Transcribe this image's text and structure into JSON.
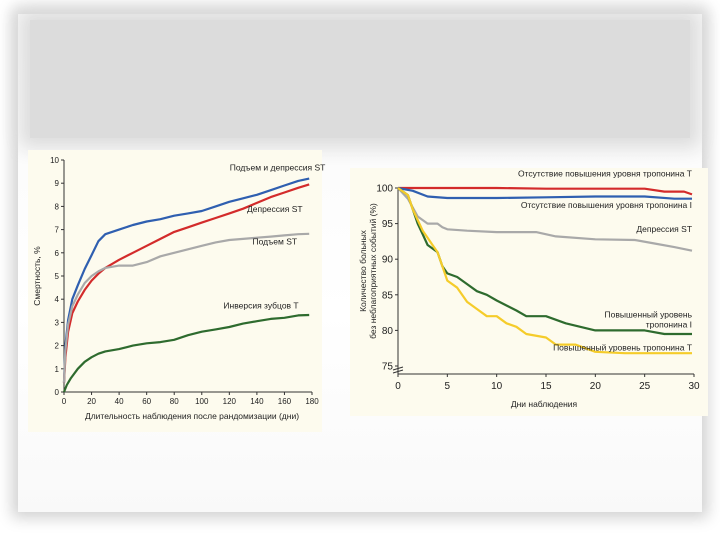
{
  "colors": {
    "frame_bg": "#ffffff",
    "title_band": "#dcdcdc",
    "panel_bg": "#fdfbee",
    "axis": "#333333"
  },
  "chart_data": [
    {
      "type": "line",
      "ylabel": "Смертность, %",
      "xlabel": "Длительность наблюдения после рандомизации (дни)",
      "xlim": [
        0,
        180
      ],
      "ylim": [
        0,
        10
      ],
      "x_ticks": [
        "0",
        "20",
        "40",
        "60",
        "80",
        "100",
        "120",
        "140",
        "160",
        "180"
      ],
      "y_ticks": [
        "0",
        "1",
        "2",
        "3",
        "4",
        "5",
        "6",
        "7",
        "8",
        "9",
        "10"
      ],
      "series": [
        {
          "name": "Подъем и депрессия ST",
          "color": "#2f5fb0",
          "label_anchor": [
            155,
            9.55
          ],
          "points": [
            [
              0,
              0.4
            ],
            [
              1,
              2
            ],
            [
              3,
              3.1
            ],
            [
              6,
              4
            ],
            [
              10,
              4.6
            ],
            [
              15,
              5.3
            ],
            [
              20,
              5.9
            ],
            [
              25,
              6.5
            ],
            [
              30,
              6.8
            ],
            [
              40,
              7.0
            ],
            [
              50,
              7.2
            ],
            [
              60,
              7.35
            ],
            [
              70,
              7.45
            ],
            [
              80,
              7.6
            ],
            [
              90,
              7.7
            ],
            [
              100,
              7.8
            ],
            [
              110,
              8.0
            ],
            [
              120,
              8.2
            ],
            [
              130,
              8.35
            ],
            [
              140,
              8.5
            ],
            [
              150,
              8.7
            ],
            [
              160,
              8.9
            ],
            [
              170,
              9.1
            ],
            [
              178,
              9.2
            ]
          ]
        },
        {
          "name": "Депрессия ST",
          "color": "#d32b2b",
          "label_anchor": [
            153,
            7.75
          ],
          "points": [
            [
              0,
              0.4
            ],
            [
              1,
              1.5
            ],
            [
              3,
              2.6
            ],
            [
              6,
              3.4
            ],
            [
              10,
              3.9
            ],
            [
              15,
              4.4
            ],
            [
              20,
              4.8
            ],
            [
              25,
              5.1
            ],
            [
              30,
              5.35
            ],
            [
              40,
              5.7
            ],
            [
              50,
              6.0
            ],
            [
              60,
              6.3
            ],
            [
              70,
              6.6
            ],
            [
              80,
              6.9
            ],
            [
              90,
              7.1
            ],
            [
              100,
              7.3
            ],
            [
              110,
              7.5
            ],
            [
              120,
              7.7
            ],
            [
              130,
              7.9
            ],
            [
              140,
              8.15
            ],
            [
              150,
              8.4
            ],
            [
              160,
              8.6
            ],
            [
              170,
              8.8
            ],
            [
              178,
              8.95
            ]
          ]
        },
        {
          "name": "Подъем ST",
          "color": "#a9a9a9",
          "label_anchor": [
            153,
            6.35
          ],
          "points": [
            [
              0,
              0.4
            ],
            [
              1,
              1.8
            ],
            [
              3,
              2.9
            ],
            [
              6,
              3.7
            ],
            [
              10,
              4.2
            ],
            [
              15,
              4.7
            ],
            [
              20,
              5.0
            ],
            [
              25,
              5.2
            ],
            [
              30,
              5.35
            ],
            [
              40,
              5.45
            ],
            [
              50,
              5.45
            ],
            [
              60,
              5.6
            ],
            [
              70,
              5.85
            ],
            [
              80,
              6.0
            ],
            [
              90,
              6.15
            ],
            [
              100,
              6.3
            ],
            [
              110,
              6.45
            ],
            [
              120,
              6.55
            ],
            [
              130,
              6.6
            ],
            [
              140,
              6.65
            ],
            [
              150,
              6.7
            ],
            [
              160,
              6.75
            ],
            [
              170,
              6.8
            ],
            [
              178,
              6.82
            ]
          ]
        },
        {
          "name": "Инверсия зубцов Т",
          "color": "#2e6b2e",
          "label_anchor": [
            143,
            3.6
          ],
          "points": [
            [
              0,
              0
            ],
            [
              2,
              0.3
            ],
            [
              5,
              0.6
            ],
            [
              10,
              1.0
            ],
            [
              15,
              1.3
            ],
            [
              20,
              1.5
            ],
            [
              25,
              1.65
            ],
            [
              30,
              1.75
            ],
            [
              40,
              1.85
            ],
            [
              50,
              2.0
            ],
            [
              60,
              2.1
            ],
            [
              70,
              2.15
            ],
            [
              80,
              2.25
            ],
            [
              90,
              2.45
            ],
            [
              100,
              2.6
            ],
            [
              110,
              2.7
            ],
            [
              120,
              2.8
            ],
            [
              130,
              2.95
            ],
            [
              140,
              3.05
            ],
            [
              150,
              3.15
            ],
            [
              160,
              3.2
            ],
            [
              170,
              3.3
            ],
            [
              178,
              3.32
            ]
          ]
        }
      ]
    },
    {
      "type": "line",
      "ylabel": [
        "Количество больных",
        "без неблагоприятных событий (%)"
      ],
      "xlabel": "Дни наблюдения",
      "xlim": [
        0,
        30
      ],
      "ylim": [
        75,
        100
      ],
      "y_axis_break": true,
      "x_ticks": [
        "0",
        "5",
        "10",
        "15",
        "20",
        "25",
        "30"
      ],
      "y_ticks": [
        "100",
        "95",
        "90",
        "85",
        "80",
        "75"
      ],
      "series": [
        {
          "name": "Отсутствие повышения уровня тропонина Т",
          "color": "#d32b2b",
          "label_lines": [
            "Отсутствие повышения уровня тропонина Т"
          ],
          "label_anchor": [
            29.8,
            101.6
          ],
          "points": [
            [
              0,
              100
            ],
            [
              5,
              100
            ],
            [
              10,
              100
            ],
            [
              15,
              99.9
            ],
            [
              20,
              99.9
            ],
            [
              25,
              99.9
            ],
            [
              27,
              99.5
            ],
            [
              29,
              99.5
            ],
            [
              29.8,
              99.1
            ]
          ]
        },
        {
          "name": "Отсутствие повышения уровня тропонина I",
          "color": "#2f5fb0",
          "label_lines": [
            "Отсутствие повышения уровня тропонина I"
          ],
          "label_anchor": [
            29.8,
            97.2
          ],
          "points": [
            [
              0,
              100
            ],
            [
              1.5,
              99.6
            ],
            [
              3,
              98.8
            ],
            [
              5,
              98.6
            ],
            [
              10,
              98.6
            ],
            [
              15,
              98.7
            ],
            [
              20,
              98.8
            ],
            [
              25,
              98.8
            ],
            [
              28,
              98.5
            ],
            [
              29.8,
              98.5
            ]
          ]
        },
        {
          "name": "Депрессия ST",
          "color": "#a9a9a9",
          "label_lines": [
            "Депрессия ST"
          ],
          "label_anchor": [
            29.8,
            93.8
          ],
          "points": [
            [
              0,
              100
            ],
            [
              1,
              98.5
            ],
            [
              2,
              96
            ],
            [
              3,
              95
            ],
            [
              4,
              95
            ],
            [
              4.5,
              94.5
            ],
            [
              5,
              94.2
            ],
            [
              7,
              94
            ],
            [
              10,
              93.8
            ],
            [
              14,
              93.8
            ],
            [
              16,
              93.2
            ],
            [
              20,
              92.8
            ],
            [
              24,
              92.7
            ],
            [
              26,
              92.2
            ],
            [
              28,
              91.7
            ],
            [
              29.8,
              91.2
            ]
          ]
        },
        {
          "name": "Повышенный уровень тропонина I",
          "color": "#2e6b2e",
          "label_lines": [
            "Повышенный уровень",
            "тропонина I"
          ],
          "label_anchor": [
            29.8,
            81.8
          ],
          "points": [
            [
              0,
              100
            ],
            [
              1,
              99
            ],
            [
              1.5,
              97
            ],
            [
              2,
              95
            ],
            [
              2.5,
              93.5
            ],
            [
              3,
              92
            ],
            [
              3.5,
              91.5
            ],
            [
              4,
              91
            ],
            [
              4.5,
              89
            ],
            [
              5,
              88
            ],
            [
              6,
              87.5
            ],
            [
              7,
              86.5
            ],
            [
              8,
              85.5
            ],
            [
              9,
              85
            ],
            [
              10,
              84.2
            ],
            [
              11,
              83.5
            ],
            [
              12,
              82.8
            ],
            [
              13,
              82
            ],
            [
              15,
              82
            ],
            [
              17,
              81
            ],
            [
              20,
              80
            ],
            [
              23,
              80
            ],
            [
              25,
              80
            ],
            [
              27,
              79.5
            ],
            [
              29.8,
              79.5
            ]
          ]
        },
        {
          "name": "Повышенный уровень тропонина Т",
          "color": "#f5cc2a",
          "label_lines": [
            "Повышенный уровень тропонина Т"
          ],
          "label_anchor": [
            29.8,
            77.2
          ],
          "points": [
            [
              0,
              100
            ],
            [
              1,
              99
            ],
            [
              1.5,
              97
            ],
            [
              2,
              95.5
            ],
            [
              2.5,
              94
            ],
            [
              3,
              93
            ],
            [
              3.5,
              92
            ],
            [
              4,
              91
            ],
            [
              4.5,
              89
            ],
            [
              5,
              87
            ],
            [
              6,
              86
            ],
            [
              7,
              84
            ],
            [
              8,
              83
            ],
            [
              9,
              82
            ],
            [
              10,
              82
            ],
            [
              11,
              81
            ],
            [
              12,
              80.5
            ],
            [
              13,
              79.5
            ],
            [
              15,
              79
            ],
            [
              16,
              78
            ],
            [
              18,
              78
            ],
            [
              20,
              77
            ],
            [
              23,
              76.8
            ],
            [
              26,
              76.8
            ],
            [
              29.8,
              76.8
            ]
          ]
        }
      ]
    }
  ]
}
